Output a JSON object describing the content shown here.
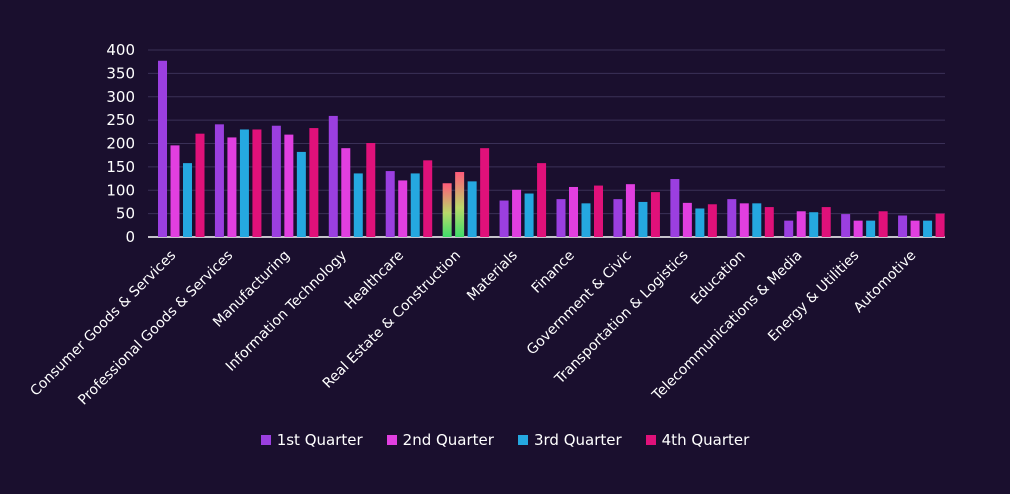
{
  "chart_data": {
    "type": "bar",
    "categories": [
      "Consumer Goods & Services",
      "Professional Goods & Services",
      "Manufacturing",
      "Information Technology",
      "Healthcare",
      "Real Estate & Construction",
      "Materials",
      "Finance",
      "Government & Civic",
      "Transportation & Logistics",
      "Education",
      "Telecommunications & Media",
      "Energy & Utilities",
      "Automotive"
    ],
    "series": [
      {
        "name": "1st Quarter",
        "color": "#9b3fe0",
        "values": [
          377,
          241,
          238,
          259,
          141,
          115,
          78,
          81,
          81,
          124,
          81,
          35,
          49,
          46
        ]
      },
      {
        "name": "2nd Quarter",
        "color": "#e13fe0",
        "values": [
          196,
          213,
          219,
          190,
          121,
          139,
          101,
          107,
          113,
          73,
          72,
          55,
          35,
          35
        ]
      },
      {
        "name": "3rd Quarter",
        "color": "#25a8e0",
        "values": [
          158,
          230,
          182,
          136,
          136,
          119,
          93,
          72,
          75,
          61,
          72,
          53,
          35,
          35
        ]
      },
      {
        "name": "4th Quarter",
        "color": "#e0117a",
        "values": [
          221,
          230,
          233,
          201,
          164,
          190,
          158,
          110,
          96,
          70,
          64,
          64,
          55,
          50
        ]
      }
    ],
    "highlight_category": "Real Estate & Construction",
    "ylim": [
      0,
      400
    ],
    "yticks": [
      0,
      50,
      100,
      150,
      200,
      250,
      300,
      350,
      400
    ],
    "grid": true,
    "legend_position": "bottom",
    "title": "",
    "xlabel": "",
    "ylabel": ""
  }
}
